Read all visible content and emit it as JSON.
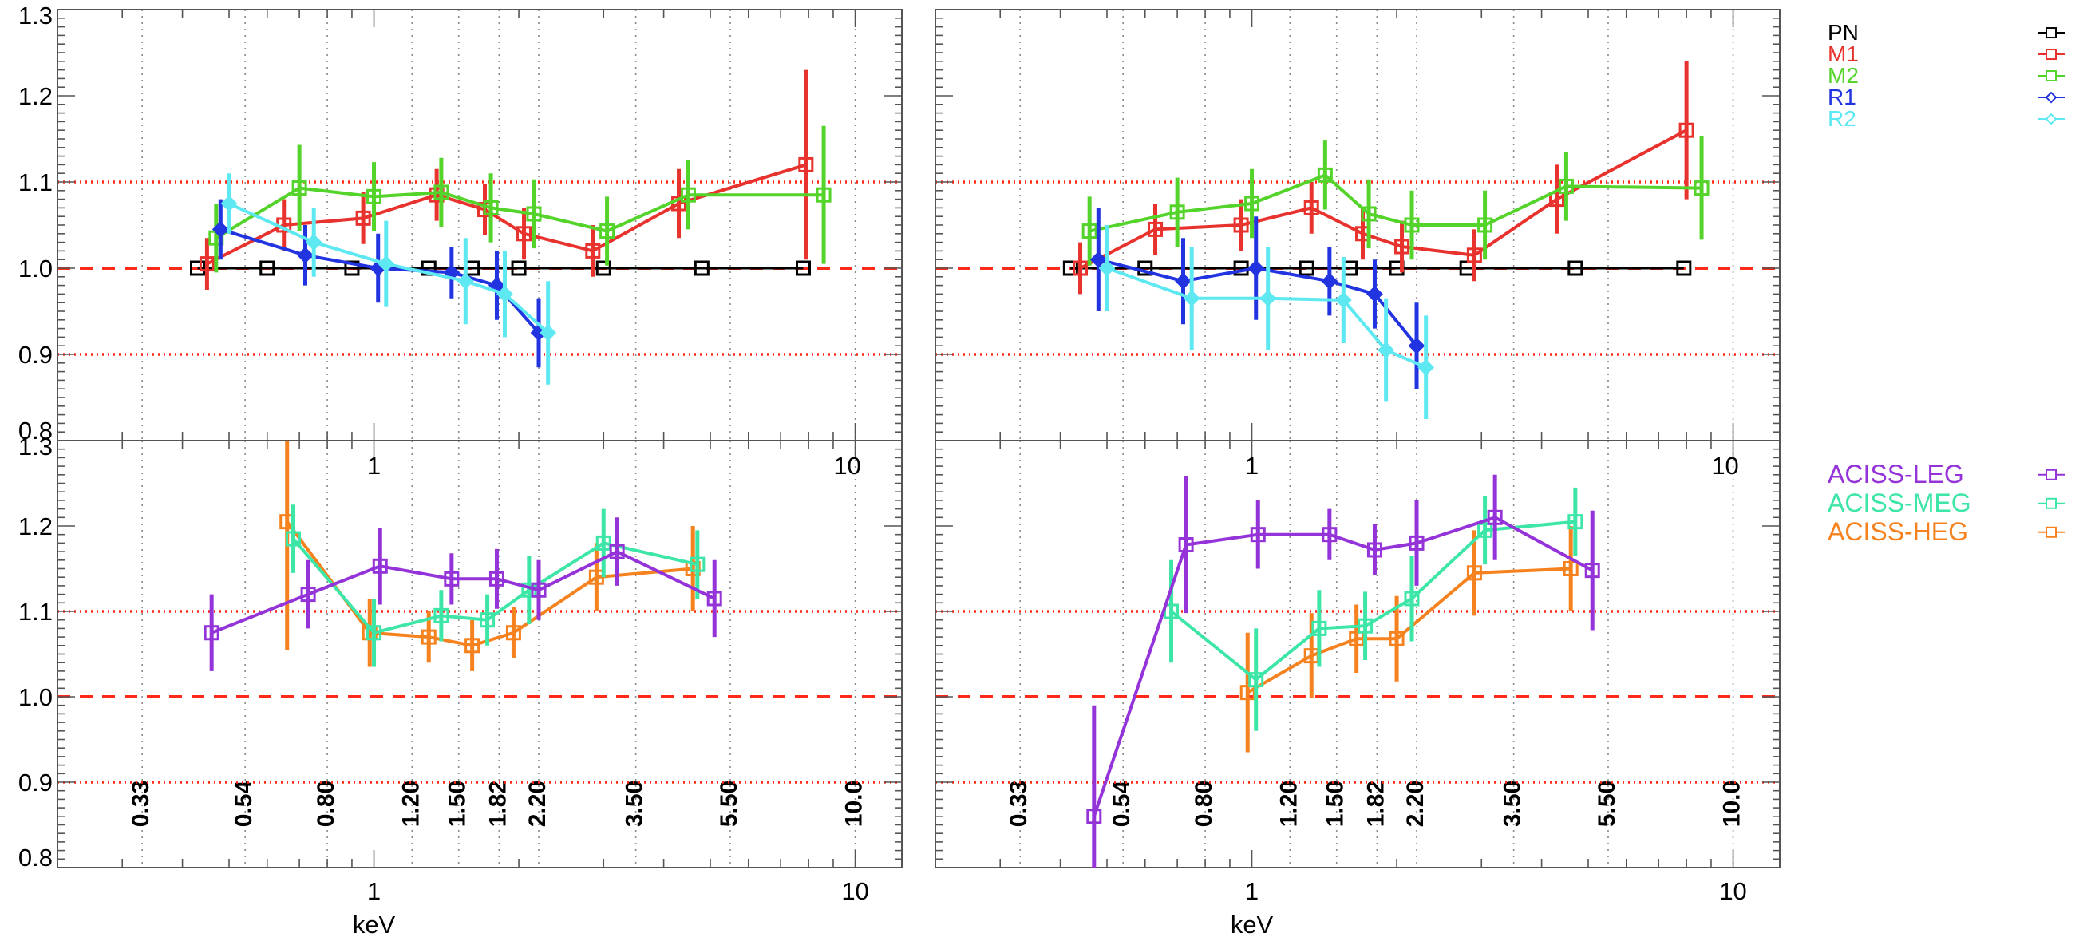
{
  "colors": {
    "PN": "#000000",
    "M1": "#e8322d",
    "M2": "#54d42a",
    "R1": "#2233e0",
    "R2": "#5ee8f2",
    "ACISS-LEG": "#9433d8",
    "ACISS-MEG": "#3de6a6",
    "ACISS-HEG": "#f5821e",
    "refline": "#ff2a1a"
  },
  "chart_data": [
    {
      "id": "top-left",
      "type": "line",
      "xscale": "log",
      "xlim": [
        0.22,
        12.5
      ],
      "ylim": [
        0.8,
        1.3
      ],
      "ylabel_ticks": [
        "0.8",
        "0.9",
        "1.0",
        "1.1",
        "1.2",
        "1.3"
      ],
      "x_major_ticks": [
        {
          "v": 1,
          "label": "1"
        },
        {
          "v": 10,
          "label": "10"
        }
      ],
      "reflines": [
        {
          "y": 1.0,
          "style": "dashed"
        },
        {
          "y": 1.1,
          "style": "dotted"
        },
        {
          "y": 0.9,
          "style": "dotted"
        }
      ],
      "vgrid": [
        0.33,
        0.54,
        0.8,
        1.2,
        1.5,
        1.82,
        2.2,
        3.5,
        5.5,
        10.0
      ],
      "series": [
        {
          "name": "PN",
          "marker": "square",
          "points": [
            {
              "x": 0.43,
              "y": 1.0
            },
            {
              "x": 0.6,
              "y": 1.0
            },
            {
              "x": 0.9,
              "y": 1.0
            },
            {
              "x": 1.3,
              "y": 1.0
            },
            {
              "x": 1.6,
              "y": 1.0
            },
            {
              "x": 2.0,
              "y": 1.0
            },
            {
              "x": 3.0,
              "y": 1.0
            },
            {
              "x": 4.8,
              "y": 1.0
            },
            {
              "x": 7.8,
              "y": 1.0
            }
          ]
        },
        {
          "name": "M1",
          "marker": "square",
          "points": [
            {
              "x": 0.45,
              "y": 1.005,
              "err": 0.03
            },
            {
              "x": 0.65,
              "y": 1.05,
              "err": 0.03
            },
            {
              "x": 0.95,
              "y": 1.058,
              "err": 0.03
            },
            {
              "x": 1.35,
              "y": 1.085,
              "err": 0.03
            },
            {
              "x": 1.7,
              "y": 1.068,
              "err": 0.03
            },
            {
              "x": 2.05,
              "y": 1.04,
              "err": 0.03
            },
            {
              "x": 2.85,
              "y": 1.02,
              "err": 0.03
            },
            {
              "x": 4.3,
              "y": 1.075,
              "err": 0.04
            },
            {
              "x": 7.9,
              "y": 1.12,
              "err": 0.11
            }
          ]
        },
        {
          "name": "M2",
          "marker": "square",
          "points": [
            {
              "x": 0.47,
              "y": 1.035,
              "err": 0.04
            },
            {
              "x": 0.7,
              "y": 1.093,
              "err": 0.05
            },
            {
              "x": 1.0,
              "y": 1.083,
              "err": 0.04
            },
            {
              "x": 1.38,
              "y": 1.088,
              "err": 0.04
            },
            {
              "x": 1.75,
              "y": 1.07,
              "err": 0.04
            },
            {
              "x": 2.15,
              "y": 1.063,
              "err": 0.04
            },
            {
              "x": 3.05,
              "y": 1.043,
              "err": 0.04
            },
            {
              "x": 4.5,
              "y": 1.085,
              "err": 0.04
            },
            {
              "x": 8.6,
              "y": 1.085,
              "err": 0.08
            }
          ]
        },
        {
          "name": "R1",
          "marker": "diamond",
          "points": [
            {
              "x": 0.48,
              "y": 1.045,
              "err": 0.035
            },
            {
              "x": 0.72,
              "y": 1.015,
              "err": 0.035
            },
            {
              "x": 1.02,
              "y": 1.0,
              "err": 0.04
            },
            {
              "x": 1.45,
              "y": 0.995,
              "err": 0.03
            },
            {
              "x": 1.8,
              "y": 0.98,
              "err": 0.04
            },
            {
              "x": 2.2,
              "y": 0.925,
              "err": 0.04
            }
          ]
        },
        {
          "name": "R2",
          "marker": "diamond",
          "points": [
            {
              "x": 0.5,
              "y": 1.075,
              "err": 0.035
            },
            {
              "x": 0.75,
              "y": 1.03,
              "err": 0.04
            },
            {
              "x": 1.06,
              "y": 1.005,
              "err": 0.05
            },
            {
              "x": 1.55,
              "y": 0.985,
              "err": 0.05
            },
            {
              "x": 1.87,
              "y": 0.97,
              "err": 0.05
            },
            {
              "x": 2.3,
              "y": 0.925,
              "err": 0.06
            }
          ]
        }
      ]
    },
    {
      "id": "top-right",
      "type": "line",
      "xscale": "log",
      "xlim": [
        0.22,
        12.5
      ],
      "ylim": [
        0.8,
        1.3
      ],
      "x_major_ticks": [
        {
          "v": 1,
          "label": "1"
        },
        {
          "v": 10,
          "label": "10"
        }
      ],
      "reflines": [
        {
          "y": 1.0,
          "style": "dashed"
        },
        {
          "y": 1.1,
          "style": "dotted"
        },
        {
          "y": 0.9,
          "style": "dotted"
        }
      ],
      "vgrid": [
        0.33,
        0.54,
        0.8,
        1.2,
        1.5,
        1.82,
        2.2,
        3.5,
        5.5,
        10.0
      ],
      "series": [
        {
          "name": "PN",
          "marker": "square",
          "points": [
            {
              "x": 0.42,
              "y": 1.0
            },
            {
              "x": 0.6,
              "y": 1.0
            },
            {
              "x": 0.95,
              "y": 1.0
            },
            {
              "x": 1.3,
              "y": 1.0
            },
            {
              "x": 1.6,
              "y": 1.0
            },
            {
              "x": 2.0,
              "y": 1.0
            },
            {
              "x": 2.8,
              "y": 1.0
            },
            {
              "x": 4.7,
              "y": 1.0
            },
            {
              "x": 7.9,
              "y": 1.0
            }
          ]
        },
        {
          "name": "M1",
          "marker": "square",
          "points": [
            {
              "x": 0.44,
              "y": 1.0,
              "err": 0.03
            },
            {
              "x": 0.63,
              "y": 1.045,
              "err": 0.03
            },
            {
              "x": 0.95,
              "y": 1.05,
              "err": 0.03
            },
            {
              "x": 1.33,
              "y": 1.07,
              "err": 0.03
            },
            {
              "x": 1.7,
              "y": 1.04,
              "err": 0.03
            },
            {
              "x": 2.05,
              "y": 1.025,
              "err": 0.03
            },
            {
              "x": 2.9,
              "y": 1.015,
              "err": 0.03
            },
            {
              "x": 4.3,
              "y": 1.08,
              "err": 0.04
            },
            {
              "x": 8.0,
              "y": 1.16,
              "err": 0.08
            }
          ]
        },
        {
          "name": "M2",
          "marker": "square",
          "points": [
            {
              "x": 0.46,
              "y": 1.043,
              "err": 0.04
            },
            {
              "x": 0.7,
              "y": 1.065,
              "err": 0.04
            },
            {
              "x": 1.0,
              "y": 1.075,
              "err": 0.04
            },
            {
              "x": 1.42,
              "y": 1.108,
              "err": 0.04
            },
            {
              "x": 1.75,
              "y": 1.063,
              "err": 0.04
            },
            {
              "x": 2.15,
              "y": 1.05,
              "err": 0.04
            },
            {
              "x": 3.05,
              "y": 1.05,
              "err": 0.04
            },
            {
              "x": 4.5,
              "y": 1.095,
              "err": 0.04
            },
            {
              "x": 8.6,
              "y": 1.093,
              "err": 0.06
            }
          ]
        },
        {
          "name": "R1",
          "marker": "diamond",
          "points": [
            {
              "x": 0.48,
              "y": 1.01,
              "err": 0.06
            },
            {
              "x": 0.72,
              "y": 0.985,
              "err": 0.05
            },
            {
              "x": 1.02,
              "y": 1.0,
              "err": 0.06
            },
            {
              "x": 1.45,
              "y": 0.985,
              "err": 0.04
            },
            {
              "x": 1.8,
              "y": 0.97,
              "err": 0.04
            },
            {
              "x": 2.2,
              "y": 0.91,
              "err": 0.05
            }
          ]
        },
        {
          "name": "R2",
          "marker": "diamond",
          "points": [
            {
              "x": 0.5,
              "y": 1.0,
              "err": 0.05
            },
            {
              "x": 0.75,
              "y": 0.965,
              "err": 0.06
            },
            {
              "x": 1.08,
              "y": 0.965,
              "err": 0.06
            },
            {
              "x": 1.55,
              "y": 0.963,
              "err": 0.05
            },
            {
              "x": 1.9,
              "y": 0.905,
              "err": 0.06
            },
            {
              "x": 2.3,
              "y": 0.885,
              "err": 0.06
            }
          ]
        }
      ]
    },
    {
      "id": "bottom-left",
      "type": "line",
      "xscale": "log",
      "xlim": [
        0.22,
        12.5
      ],
      "ylim": [
        0.8,
        1.3
      ],
      "ylabel_ticks": [
        "0.8",
        "0.9",
        "1.0",
        "1.1",
        "1.2",
        "1.3"
      ],
      "xlabel": "keV",
      "x_major_ticks": [
        {
          "v": 1,
          "label": "1"
        },
        {
          "v": 10,
          "label": "10"
        }
      ],
      "x_top_ticks": [
        {
          "v": 1,
          "label": "1"
        },
        {
          "v": 10,
          "label": "10"
        }
      ],
      "reflines": [
        {
          "y": 1.0,
          "style": "dashed"
        },
        {
          "y": 1.1,
          "style": "dotted"
        },
        {
          "y": 0.9,
          "style": "dotted"
        }
      ],
      "vgrid": [
        0.33,
        0.54,
        0.8,
        1.2,
        1.5,
        1.82,
        2.2,
        3.5,
        5.5,
        10.0
      ],
      "vgrid_labels": [
        "0.33",
        "0.54",
        "0.80",
        "1.20",
        "1.50",
        "1.82",
        "2.20",
        "3.50",
        "5.50",
        "10.0"
      ],
      "series": [
        {
          "name": "ACISS-HEG",
          "marker": "square",
          "points": [
            {
              "x": 0.66,
              "y": 1.205,
              "err": 0.15
            },
            {
              "x": 0.98,
              "y": 1.075,
              "err": 0.04
            },
            {
              "x": 1.3,
              "y": 1.07,
              "err": 0.03
            },
            {
              "x": 1.6,
              "y": 1.06,
              "err": 0.03
            },
            {
              "x": 1.95,
              "y": 1.075,
              "err": 0.03
            },
            {
              "x": 2.9,
              "y": 1.14,
              "err": 0.04
            },
            {
              "x": 4.6,
              "y": 1.15,
              "err": 0.05
            }
          ]
        },
        {
          "name": "ACISS-MEG",
          "marker": "square",
          "points": [
            {
              "x": 0.68,
              "y": 1.185,
              "err": 0.04
            },
            {
              "x": 1.0,
              "y": 1.075,
              "err": 0.04
            },
            {
              "x": 1.38,
              "y": 1.095,
              "err": 0.03
            },
            {
              "x": 1.72,
              "y": 1.09,
              "err": 0.03
            },
            {
              "x": 2.1,
              "y": 1.125,
              "err": 0.04
            },
            {
              "x": 3.0,
              "y": 1.18,
              "err": 0.04
            },
            {
              "x": 4.7,
              "y": 1.155,
              "err": 0.04
            }
          ]
        },
        {
          "name": "ACISS-LEG",
          "marker": "square",
          "points": [
            {
              "x": 0.46,
              "y": 1.075,
              "err": 0.045
            },
            {
              "x": 0.73,
              "y": 1.12,
              "err": 0.04
            },
            {
              "x": 1.03,
              "y": 1.153,
              "err": 0.045
            },
            {
              "x": 1.45,
              "y": 1.138,
              "err": 0.03
            },
            {
              "x": 1.8,
              "y": 1.138,
              "err": 0.035
            },
            {
              "x": 2.2,
              "y": 1.125,
              "err": 0.035
            },
            {
              "x": 3.2,
              "y": 1.17,
              "err": 0.04
            },
            {
              "x": 5.1,
              "y": 1.115,
              "err": 0.045
            }
          ]
        }
      ]
    },
    {
      "id": "bottom-right",
      "type": "line",
      "xscale": "log",
      "xlim": [
        0.22,
        12.5
      ],
      "ylim": [
        0.8,
        1.3
      ],
      "xlabel": "keV",
      "x_major_ticks": [
        {
          "v": 1,
          "label": "1"
        },
        {
          "v": 10,
          "label": "10"
        }
      ],
      "x_top_ticks": [
        {
          "v": 1,
          "label": "1"
        },
        {
          "v": 10,
          "label": "10"
        }
      ],
      "reflines": [
        {
          "y": 1.0,
          "style": "dashed"
        },
        {
          "y": 1.1,
          "style": "dotted"
        },
        {
          "y": 0.9,
          "style": "dotted"
        }
      ],
      "vgrid": [
        0.33,
        0.54,
        0.8,
        1.2,
        1.5,
        1.82,
        2.2,
        3.5,
        5.5,
        10.0
      ],
      "vgrid_labels": [
        "0.33",
        "0.54",
        "0.80",
        "1.20",
        "1.50",
        "1.82",
        "2.20",
        "3.50",
        "5.50",
        "10.0"
      ],
      "series": [
        {
          "name": "ACISS-HEG",
          "marker": "square",
          "points": [
            {
              "x": 0.98,
              "y": 1.005,
              "err": 0.07
            },
            {
              "x": 1.33,
              "y": 1.048,
              "err": 0.05
            },
            {
              "x": 1.65,
              "y": 1.068,
              "err": 0.04
            },
            {
              "x": 2.0,
              "y": 1.068,
              "err": 0.05
            },
            {
              "x": 2.9,
              "y": 1.145,
              "err": 0.05
            },
            {
              "x": 4.6,
              "y": 1.15,
              "err": 0.05
            }
          ]
        },
        {
          "name": "ACISS-MEG",
          "marker": "square",
          "points": [
            {
              "x": 0.68,
              "y": 1.1,
              "err": 0.06
            },
            {
              "x": 1.02,
              "y": 1.02,
              "err": 0.06
            },
            {
              "x": 1.38,
              "y": 1.08,
              "err": 0.045
            },
            {
              "x": 1.72,
              "y": 1.083,
              "err": 0.04
            },
            {
              "x": 2.15,
              "y": 1.115,
              "err": 0.05
            },
            {
              "x": 3.05,
              "y": 1.195,
              "err": 0.04
            },
            {
              "x": 4.7,
              "y": 1.205,
              "err": 0.04
            }
          ]
        },
        {
          "name": "ACISS-LEG",
          "marker": "square",
          "points": [
            {
              "x": 0.47,
              "y": 0.86,
              "err": 0.13
            },
            {
              "x": 0.73,
              "y": 1.178,
              "err": 0.08
            },
            {
              "x": 1.03,
              "y": 1.19,
              "err": 0.04
            },
            {
              "x": 1.45,
              "y": 1.19,
              "err": 0.03
            },
            {
              "x": 1.8,
              "y": 1.172,
              "err": 0.03
            },
            {
              "x": 2.2,
              "y": 1.18,
              "err": 0.05
            },
            {
              "x": 3.2,
              "y": 1.21,
              "err": 0.05
            },
            {
              "x": 5.1,
              "y": 1.148,
              "err": 0.07
            }
          ]
        }
      ]
    }
  ],
  "legends": [
    {
      "id": "legend-top",
      "entries": [
        {
          "name": "PN",
          "marker": "square"
        },
        {
          "name": "M1",
          "marker": "square"
        },
        {
          "name": "M2",
          "marker": "square"
        },
        {
          "name": "R1",
          "marker": "diamond"
        },
        {
          "name": "R2",
          "marker": "diamond"
        }
      ]
    },
    {
      "id": "legend-bottom",
      "entries": [
        {
          "name": "ACISS-LEG",
          "marker": "square"
        },
        {
          "name": "ACISS-MEG",
          "marker": "square"
        },
        {
          "name": "ACISS-HEG",
          "marker": "square"
        }
      ]
    }
  ]
}
